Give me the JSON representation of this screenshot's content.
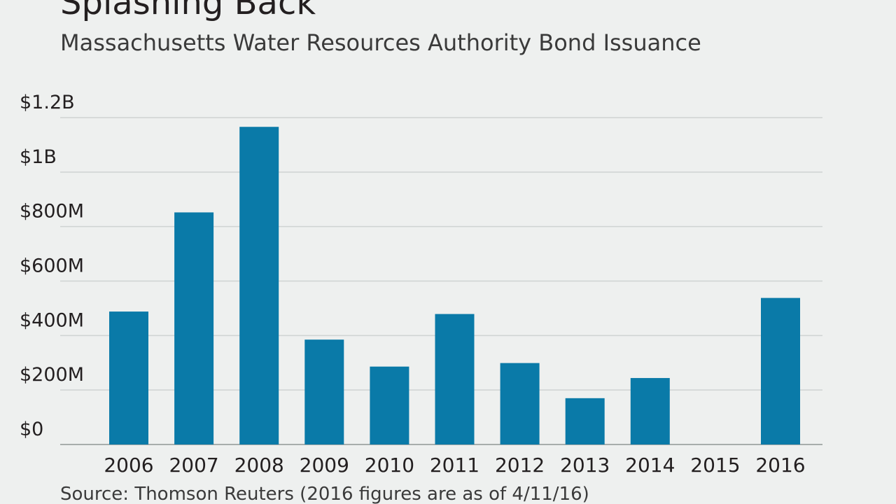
{
  "chart_data": {
    "type": "bar",
    "title": "Splashing Back",
    "subtitle": "Massachusetts Water Resources Authority Bond Issuance",
    "source": "Source: Thomson Reuters (2016 figures are as of 4/11/16)",
    "xlabel": "",
    "ylabel": "",
    "categories": [
      "2006",
      "2007",
      "2008",
      "2009",
      "2010",
      "2011",
      "2012",
      "2013",
      "2014",
      "2015",
      "2016"
    ],
    "values": [
      488,
      852,
      1166,
      385,
      286,
      479,
      299,
      170,
      244,
      0,
      538
    ],
    "value_unit": "$M",
    "ylim": [
      0,
      1200
    ],
    "y_ticks": [
      {
        "value": 0,
        "label": "$0"
      },
      {
        "value": 200,
        "label": "$200M"
      },
      {
        "value": 400,
        "label": "$400M"
      },
      {
        "value": 600,
        "label": "$600M"
      },
      {
        "value": 800,
        "label": "$800M"
      },
      {
        "value": 1000,
        "label": "$1B"
      },
      {
        "value": 1200,
        "label": "$1.2B"
      }
    ],
    "grid": true,
    "legend": "none",
    "bar_color": "#0a7aa8"
  }
}
